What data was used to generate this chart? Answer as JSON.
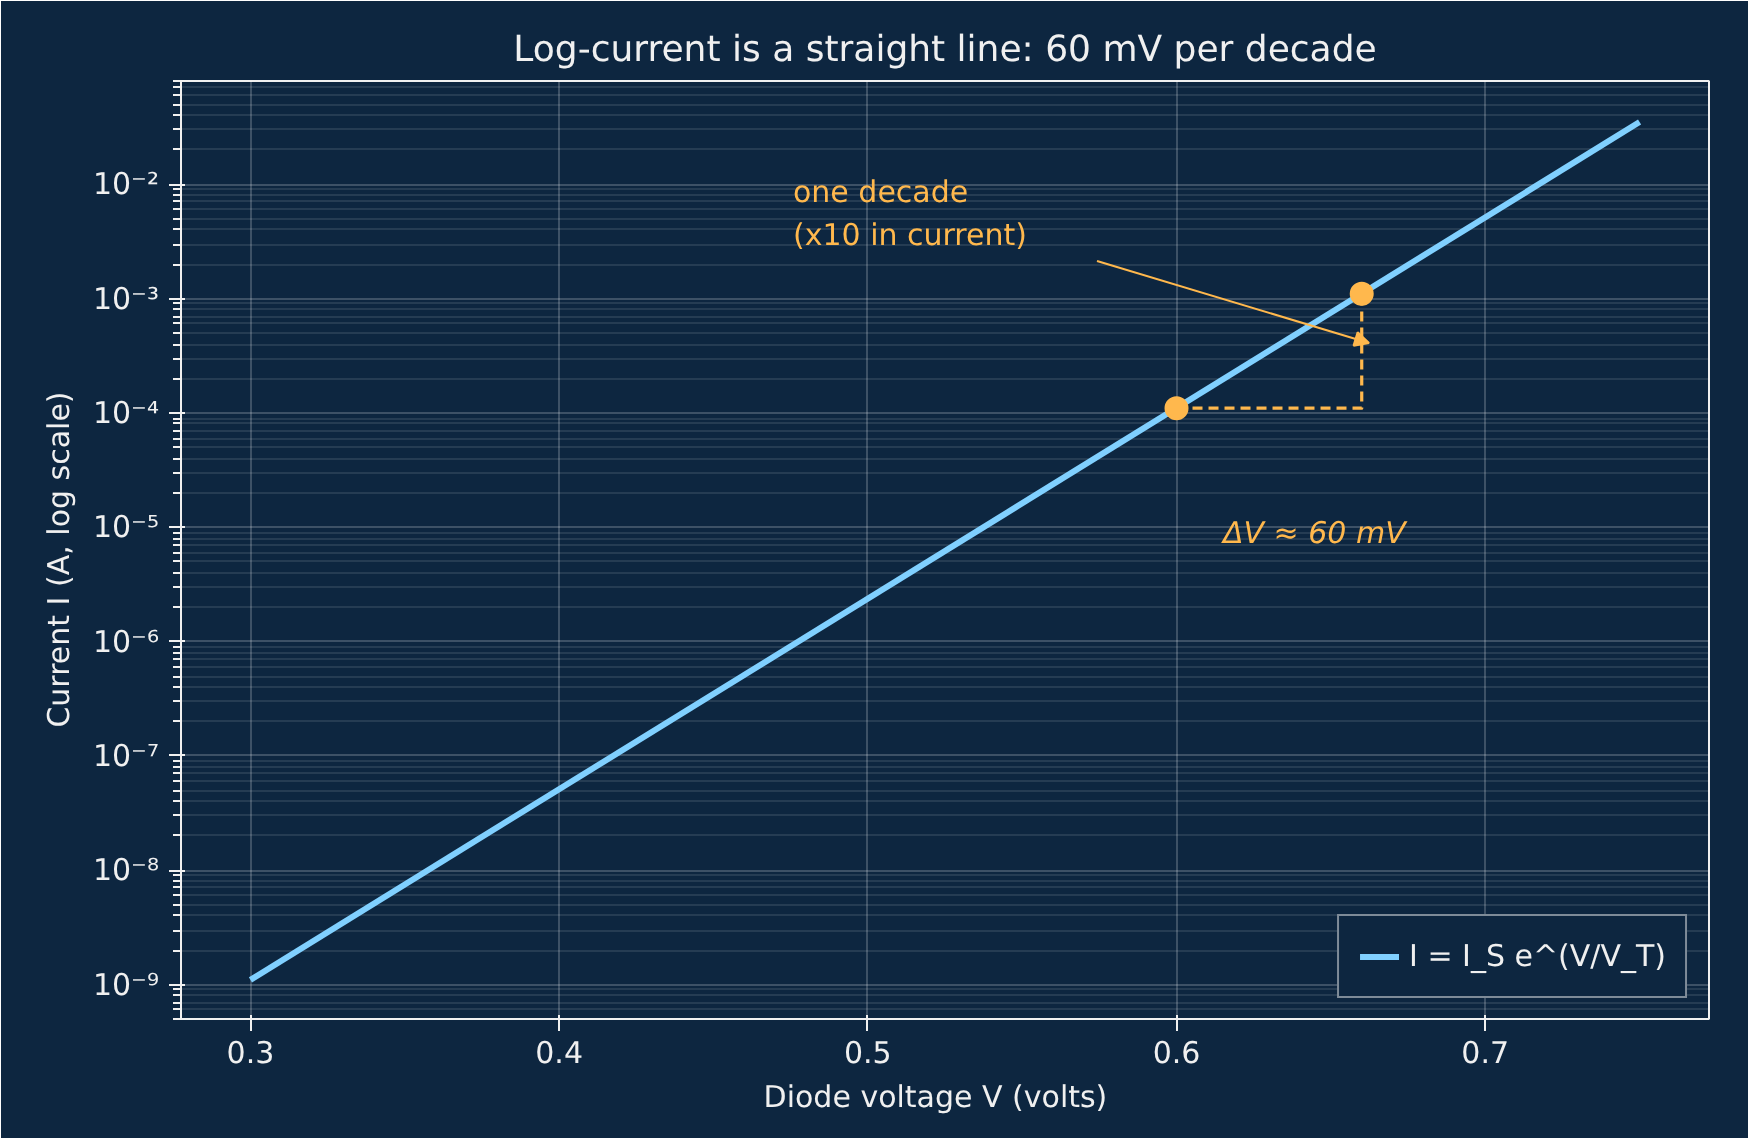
{
  "chart_data": {
    "type": "line",
    "title": "Log-current is a straight line: 60 mV per decade",
    "xlabel": "Diode voltage  V  (volts)",
    "ylabel": "Current  I  (A, log scale)",
    "log": "y",
    "grid": true,
    "legend": "bottom right",
    "xlim": [
      0.2775,
      0.7725
    ],
    "xticks": [
      0.3,
      0.4,
      0.5,
      0.6,
      0.7
    ],
    "ylim": [
      5e-10,
      0.08
    ],
    "yticks": [
      {
        "value": 1e-09,
        "label": "10⁻⁹"
      },
      {
        "value": 1e-08,
        "label": "10⁻⁸"
      },
      {
        "value": 1e-07,
        "label": "10⁻⁷"
      },
      {
        "value": 1e-06,
        "label": "10⁻⁶"
      },
      {
        "value": 1e-05,
        "label": "10⁻⁵"
      },
      {
        "value": 0.0001,
        "label": "10⁻⁴"
      },
      {
        "value": 0.001,
        "label": "10⁻³"
      },
      {
        "value": 0.01,
        "label": "10⁻²"
      }
    ],
    "series": [
      {
        "name": "I = I_S e^(V/V_T)",
        "color": "#80d0ff",
        "x": [
          0.3,
          0.75
        ],
        "values": [
          1.1e-09,
          0.035
        ],
        "line_style": "solid"
      },
      {
        "type": "line",
        "color": "#ffb84d",
        "x": [
          0.6,
          0.66,
          0.66
        ],
        "values": [
          0.00011,
          0.00011,
          0.0011
        ],
        "line_style": "dashed"
      },
      {
        "type": "scatter",
        "color": "#ffb84d",
        "x": [
          0.6,
          0.66
        ],
        "values": [
          0.00011,
          0.0011
        ],
        "marker": "circle"
      }
    ],
    "annotations": [
      "one decade\n(x10 in current)",
      "ΔV ≈ 60 mV"
    ]
  }
}
